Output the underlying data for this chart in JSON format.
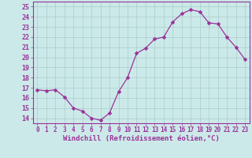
{
  "x": [
    0,
    1,
    2,
    3,
    4,
    5,
    6,
    7,
    8,
    9,
    10,
    11,
    12,
    13,
    14,
    15,
    16,
    17,
    18,
    19,
    20,
    21,
    22,
    23
  ],
  "y": [
    16.8,
    16.7,
    16.8,
    16.1,
    15.0,
    14.7,
    14.0,
    13.8,
    14.5,
    16.6,
    18.0,
    20.4,
    20.9,
    21.8,
    22.0,
    23.5,
    24.3,
    24.7,
    24.5,
    23.4,
    23.3,
    22.0,
    21.0,
    19.8
  ],
  "line_color": "#993399",
  "marker": "D",
  "marker_size": 2.5,
  "bg_color": "#cce9e9",
  "grid_color": "#aacccc",
  "xlabel": "Windchill (Refroidissement éolien,°C)",
  "ylim": [
    13.5,
    25.5
  ],
  "xlim": [
    -0.5,
    23.5
  ],
  "tick_color": "#993399",
  "axis_color": "#993399",
  "xlabel_fontsize": 6.5,
  "ytick_fontsize": 6,
  "xtick_fontsize": 5.5
}
